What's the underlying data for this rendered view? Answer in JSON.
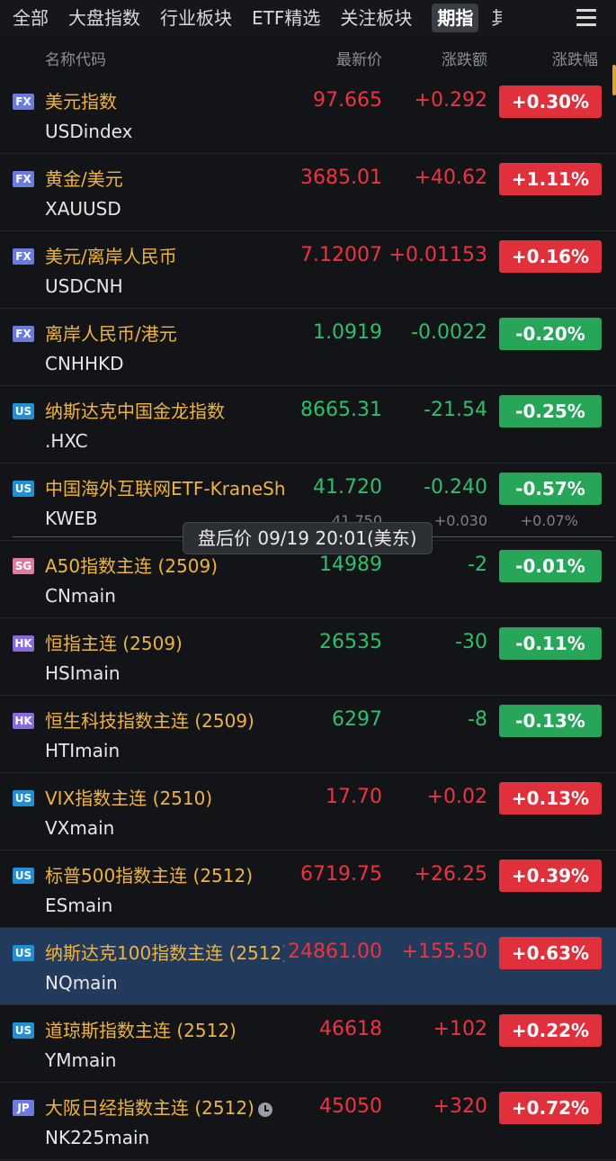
{
  "tabs": [
    "全部",
    "大盘指数",
    "行业板块",
    "ETF精选",
    "关注板块",
    "期指",
    "其"
  ],
  "header": {
    "name": "名称代码",
    "price": "最新价",
    "change": "涨跌额",
    "pct": "涨跌幅"
  },
  "tooltip": "盘后价 09/19 20:01(美东)",
  "colors": {
    "up": "#e0303c",
    "down": "#27a65a",
    "FX": "#6a7ce0",
    "US": "#1f8fd8",
    "SG": "#e07aa0",
    "HK": "#8a6ae0",
    "JP": "#6a7ce0"
  },
  "rows": [
    {
      "badge": "FX",
      "name": "美元指数",
      "code": "USDindex",
      "price": "97.665",
      "change": "+0.292",
      "pct": "+0.30%",
      "dir": "up"
    },
    {
      "badge": "FX",
      "name": "黄金/美元",
      "code": "XAUUSD",
      "price": "3685.01",
      "change": "+40.62",
      "pct": "+1.11%",
      "dir": "up"
    },
    {
      "badge": "FX",
      "name": "美元/离岸人民币",
      "code": "USDCNH",
      "price": "7.12007",
      "change": "+0.01153",
      "pct": "+0.16%",
      "dir": "up"
    },
    {
      "badge": "FX",
      "name": "离岸人民币/港元",
      "code": "CNHHKD",
      "price": "1.0919",
      "change": "-0.0022",
      "pct": "-0.20%",
      "dir": "down"
    },
    {
      "badge": "US",
      "name": "纳斯达克中国金龙指数",
      "code": ".HXC",
      "price": "8665.31",
      "change": "-21.54",
      "pct": "-0.25%",
      "dir": "down"
    },
    {
      "badge": "US",
      "name": "中国海外互联网ETF-KraneSh",
      "code": "KWEB",
      "price": "41.720",
      "change": "-0.240",
      "pct": "-0.57%",
      "dir": "down",
      "ext_price": "41.750",
      "ext_change": "+0.030",
      "ext_pct": "+0.07%"
    },
    {
      "badge": "SG",
      "name": "A50指数主连 (2509)",
      "code": "CNmain",
      "price": "14989",
      "change": "-2",
      "pct": "-0.01%",
      "dir": "down"
    },
    {
      "badge": "HK",
      "name": "恒指主连 (2509)",
      "code": "HSImain",
      "price": "26535",
      "change": "-30",
      "pct": "-0.11%",
      "dir": "down"
    },
    {
      "badge": "HK",
      "name": "恒生科技指数主连 (2509)",
      "code": "HTImain",
      "price": "6297",
      "change": "-8",
      "pct": "-0.13%",
      "dir": "down"
    },
    {
      "badge": "US",
      "name": "VIX指数主连 (2510)",
      "code": "VXmain",
      "price": "17.70",
      "change": "+0.02",
      "pct": "+0.13%",
      "dir": "up"
    },
    {
      "badge": "US",
      "name": "标普500指数主连 (2512)",
      "code": "ESmain",
      "price": "6719.75",
      "change": "+26.25",
      "pct": "+0.39%",
      "dir": "up"
    },
    {
      "badge": "US",
      "name": "纳斯达克100指数主连 (2512)",
      "code": "NQmain",
      "price": "24861.00",
      "change": "+155.50",
      "pct": "+0.63%",
      "dir": "up",
      "selected": true
    },
    {
      "badge": "US",
      "name": "道琼斯指数主连 (2512)",
      "code": "YMmain",
      "price": "46618",
      "change": "+102",
      "pct": "+0.22%",
      "dir": "up"
    },
    {
      "badge": "JP",
      "name": "大阪日经指数主连 (2512)",
      "code": "NK225main",
      "price": "45050",
      "change": "+320",
      "pct": "+0.72%",
      "dir": "up",
      "clock": true
    }
  ]
}
